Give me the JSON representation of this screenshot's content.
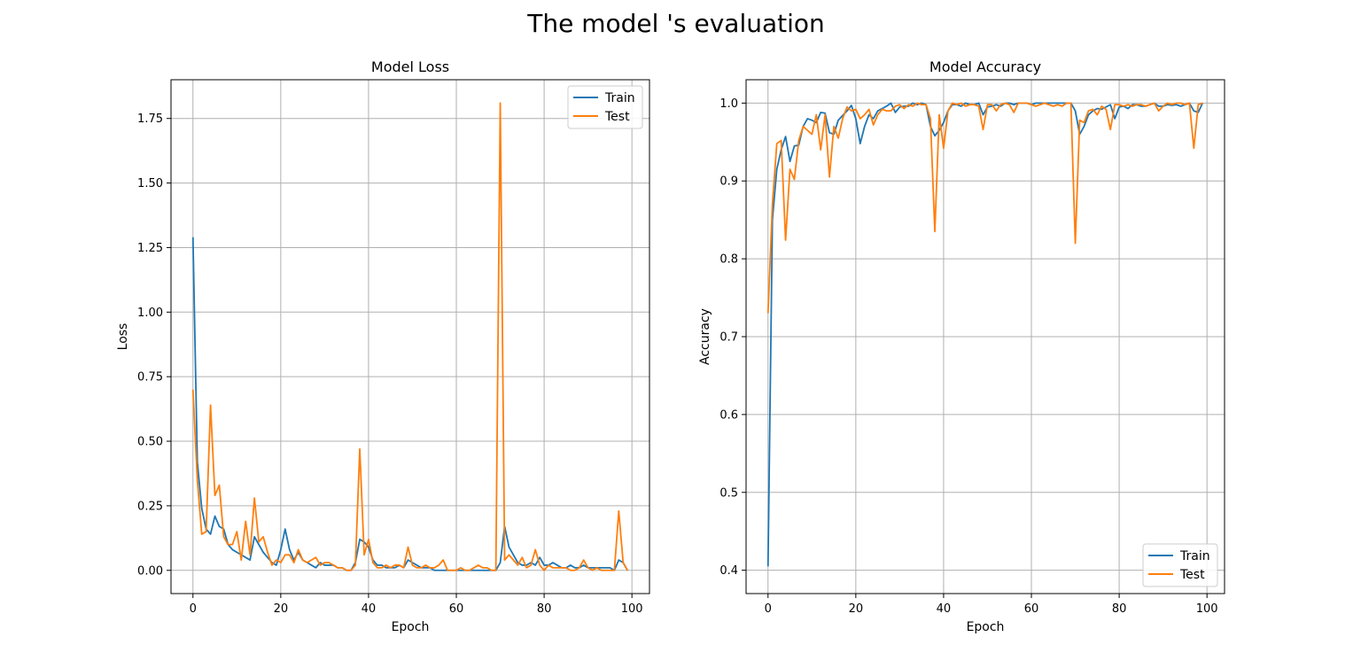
{
  "title": "The model 's evaluation",
  "colors": {
    "train": "#1f77b4",
    "test": "#ff7f0e"
  },
  "chart_data": [
    {
      "type": "line",
      "title": "Model Loss",
      "xlabel": "Epoch",
      "ylabel": "Loss",
      "xlim": [
        -5,
        104
      ],
      "ylim": [
        -0.09,
        1.9
      ],
      "xticks": [
        0,
        20,
        40,
        60,
        80,
        100
      ],
      "yticks": [
        0.0,
        0.25,
        0.5,
        0.75,
        1.0,
        1.25,
        1.5,
        1.75
      ],
      "yticklabels": [
        "0.00",
        "0.25",
        "0.50",
        "0.75",
        "1.00",
        "1.25",
        "1.50",
        "1.75"
      ],
      "grid": true,
      "legend": "upper right",
      "series": [
        {
          "name": "Train",
          "values": [
            1.29,
            0.42,
            0.24,
            0.16,
            0.14,
            0.21,
            0.17,
            0.16,
            0.1,
            0.08,
            0.07,
            0.06,
            0.05,
            0.04,
            0.13,
            0.1,
            0.07,
            0.05,
            0.03,
            0.02,
            0.08,
            0.16,
            0.08,
            0.04,
            0.07,
            0.04,
            0.03,
            0.02,
            0.01,
            0.03,
            0.02,
            0.02,
            0.02,
            0.01,
            0.01,
            0.0,
            0.0,
            0.03,
            0.12,
            0.11,
            0.09,
            0.04,
            0.02,
            0.02,
            0.01,
            0.01,
            0.01,
            0.02,
            0.01,
            0.04,
            0.03,
            0.02,
            0.01,
            0.01,
            0.01,
            0.0,
            0.0,
            0.0,
            0.0,
            0.0,
            0.0,
            0.0,
            0.0,
            0.0,
            0.0,
            0.0,
            0.0,
            0.0,
            0.0,
            0.0,
            0.03,
            0.17,
            0.09,
            0.06,
            0.03,
            0.02,
            0.02,
            0.03,
            0.02,
            0.05,
            0.02,
            0.02,
            0.03,
            0.02,
            0.01,
            0.01,
            0.02,
            0.01,
            0.01,
            0.02,
            0.01,
            0.01,
            0.01,
            0.01,
            0.01,
            0.01,
            0.0,
            0.04,
            0.03,
            0.0
          ]
        },
        {
          "name": "Test",
          "values": [
            0.7,
            0.35,
            0.14,
            0.15,
            0.64,
            0.29,
            0.33,
            0.13,
            0.1,
            0.1,
            0.15,
            0.04,
            0.19,
            0.06,
            0.28,
            0.11,
            0.13,
            0.07,
            0.02,
            0.04,
            0.03,
            0.06,
            0.06,
            0.03,
            0.08,
            0.04,
            0.03,
            0.04,
            0.05,
            0.02,
            0.03,
            0.03,
            0.02,
            0.01,
            0.01,
            0.0,
            0.0,
            0.02,
            0.47,
            0.06,
            0.12,
            0.03,
            0.01,
            0.01,
            0.02,
            0.01,
            0.02,
            0.02,
            0.01,
            0.09,
            0.02,
            0.01,
            0.01,
            0.02,
            0.01,
            0.01,
            0.02,
            0.04,
            0.0,
            0.0,
            0.0,
            0.01,
            0.0,
            0.0,
            0.01,
            0.02,
            0.01,
            0.01,
            0.0,
            0.0,
            1.81,
            0.04,
            0.06,
            0.04,
            0.02,
            0.05,
            0.01,
            0.02,
            0.08,
            0.02,
            0.0,
            0.02,
            0.01,
            0.01,
            0.01,
            0.01,
            0.0,
            0.0,
            0.01,
            0.04,
            0.01,
            0.0,
            0.01,
            0.0,
            0.0,
            0.0,
            0.0,
            0.23,
            0.03,
            0.0
          ]
        }
      ]
    },
    {
      "type": "line",
      "title": "Model Accuracy",
      "xlabel": "Epoch",
      "ylabel": "Accuracy",
      "xlim": [
        -5,
        104
      ],
      "ylim": [
        0.37,
        1.03
      ],
      "xticks": [
        0,
        20,
        40,
        60,
        80,
        100
      ],
      "yticks": [
        0.4,
        0.5,
        0.6,
        0.7,
        0.8,
        0.9,
        1.0
      ],
      "yticklabels": [
        "0.4",
        "0.5",
        "0.6",
        "0.7",
        "0.8",
        "0.9",
        "1.0"
      ],
      "grid": true,
      "legend": "lower right",
      "series": [
        {
          "name": "Train",
          "values": [
            0.405,
            0.85,
            0.915,
            0.94,
            0.957,
            0.925,
            0.945,
            0.946,
            0.97,
            0.98,
            0.978,
            0.975,
            0.988,
            0.987,
            0.962,
            0.96,
            0.978,
            0.984,
            0.99,
            0.997,
            0.98,
            0.948,
            0.97,
            0.985,
            0.98,
            0.99,
            0.993,
            0.996,
            1.0,
            0.988,
            0.995,
            0.996,
            0.996,
            1.0,
            0.998,
            1.0,
            0.998,
            0.97,
            0.958,
            0.965,
            0.975,
            0.99,
            0.998,
            0.998,
            0.996,
            1.0,
            0.998,
            0.998,
            1.0,
            0.985,
            0.995,
            0.996,
            0.998,
            0.996,
            1.0,
            1.0,
            0.998,
            1.0,
            1.0,
            1.0,
            0.998,
            1.0,
            1.0,
            1.0,
            1.0,
            1.0,
            1.0,
            1.0,
            1.0,
            1.0,
            0.99,
            0.96,
            0.97,
            0.985,
            0.99,
            0.993,
            0.992,
            0.995,
            0.998,
            0.98,
            0.995,
            0.996,
            0.993,
            0.998,
            0.998,
            0.996,
            0.996,
            0.998,
            1.0,
            0.996,
            0.996,
            0.998,
            0.997,
            0.998,
            0.996,
            0.998,
            1.0,
            0.99,
            0.988,
            1.0
          ]
        },
        {
          "name": "Test",
          "values": [
            0.73,
            0.87,
            0.948,
            0.952,
            0.824,
            0.915,
            0.902,
            0.952,
            0.97,
            0.965,
            0.96,
            0.985,
            0.94,
            0.985,
            0.905,
            0.97,
            0.955,
            0.98,
            0.995,
            0.99,
            0.992,
            0.98,
            0.985,
            0.992,
            0.972,
            0.985,
            0.992,
            0.99,
            0.99,
            0.996,
            0.998,
            0.993,
            0.998,
            0.996,
            1.0,
            0.998,
            0.998,
            0.98,
            0.835,
            0.985,
            0.942,
            0.99,
            1.0,
            0.998,
            1.0,
            0.996,
            0.998,
            0.998,
            0.996,
            0.966,
            0.998,
            0.998,
            0.99,
            0.998,
            1.0,
            0.998,
            0.988,
            1.0,
            1.0,
            1.0,
            0.998,
            0.996,
            0.998,
            1.0,
            0.998,
            0.996,
            0.998,
            0.996,
            1.0,
            1.0,
            0.82,
            0.978,
            0.975,
            0.99,
            0.992,
            0.985,
            0.996,
            0.992,
            0.966,
            0.998,
            0.998,
            0.996,
            0.998,
            0.996,
            0.998,
            0.998,
            0.996,
            0.998,
            1.0,
            0.99,
            0.996,
            1.0,
            0.998,
            1.0,
            1.0,
            0.998,
            1.0,
            0.942,
            0.998,
            1.0
          ]
        }
      ]
    }
  ]
}
